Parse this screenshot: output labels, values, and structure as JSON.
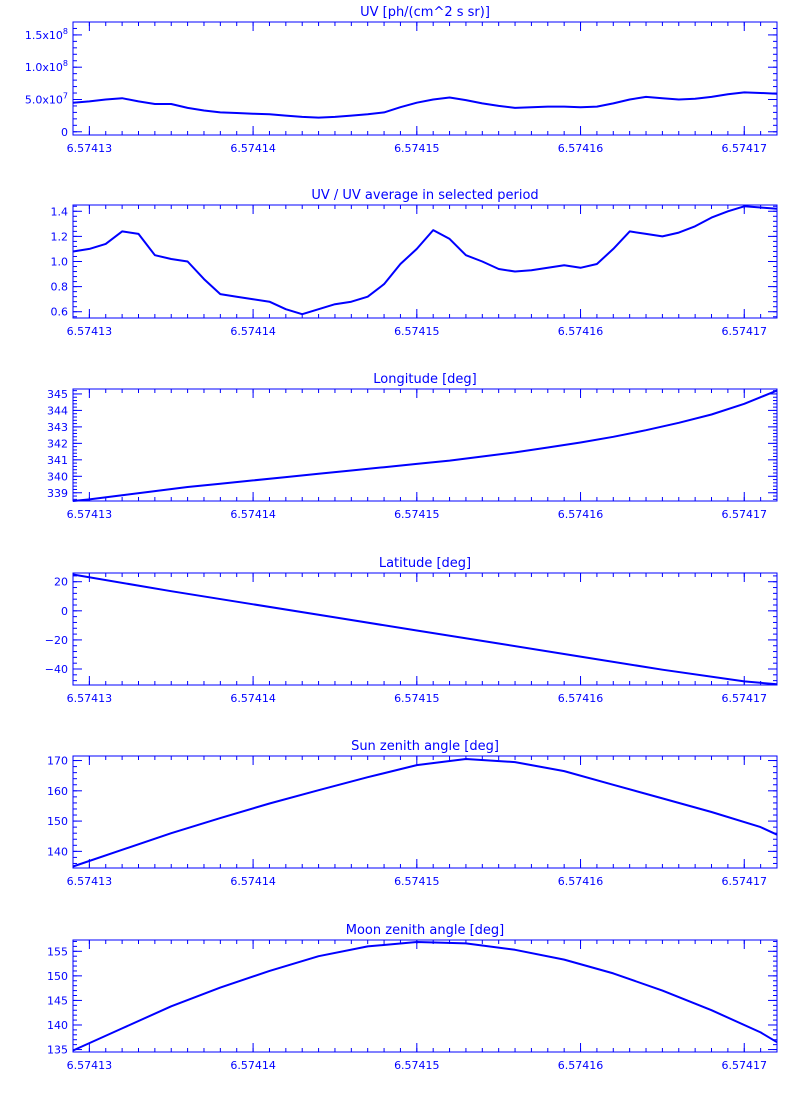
{
  "theme": {
    "ink": "#0000ff",
    "background": "#ffffff"
  },
  "chart_data": [
    {
      "type": "line",
      "title": "UV [ph/(cm^2 s sr)]",
      "xlim": [
        6.574129,
        6.574172
      ],
      "ylim": [
        -5000000,
        170000000
      ],
      "x_ticks": [
        {
          "v": 6.57413,
          "label": "6.57413"
        },
        {
          "v": 6.57414,
          "label": "6.57414"
        },
        {
          "v": 6.57415,
          "label": "6.57415"
        },
        {
          "v": 6.57416,
          "label": "6.57416"
        },
        {
          "v": 6.57417,
          "label": "6.57417"
        }
      ],
      "y_ticks": [
        {
          "v": 0,
          "label": "0",
          "mant": null
        },
        {
          "v": 50000000,
          "label": "5.0x10^7",
          "mant": "5.0x10",
          "exp": "7"
        },
        {
          "v": 100000000,
          "label": "1.0x10^8",
          "mant": "1.0x10",
          "exp": "8"
        },
        {
          "v": 150000000,
          "label": "1.5x10^8",
          "mant": "1.5x10",
          "exp": "8"
        }
      ],
      "series": [
        {
          "x": [
            6.574129,
            6.57413,
            6.574131,
            6.574132,
            6.574133,
            6.574134,
            6.574135,
            6.574136,
            6.574137,
            6.574138,
            6.574139,
            6.57414,
            6.574141,
            6.574142,
            6.574143,
            6.574144,
            6.574145,
            6.574146,
            6.574147,
            6.574148,
            6.574149,
            6.57415,
            6.574151,
            6.574152,
            6.574153,
            6.574154,
            6.574155,
            6.574156,
            6.574157,
            6.574158,
            6.574159,
            6.57416,
            6.574161,
            6.574162,
            6.574163,
            6.574164,
            6.574165,
            6.574166,
            6.574167,
            6.574168,
            6.574169,
            6.57417,
            6.574171,
            6.574172
          ],
          "y": [
            45000000,
            47000000,
            50000000,
            52000000,
            47000000,
            43000000,
            43000000,
            37000000,
            33000000,
            30000000,
            29000000,
            28000000,
            27000000,
            25000000,
            23000000,
            22000000,
            23000000,
            25000000,
            27000000,
            30000000,
            38000000,
            45000000,
            50000000,
            53000000,
            49000000,
            44000000,
            40000000,
            37000000,
            38000000,
            39000000,
            39000000,
            38000000,
            39000000,
            44000000,
            50000000,
            54000000,
            52000000,
            50000000,
            51000000,
            54000000,
            58000000,
            61000000,
            60000000,
            59000000
          ]
        }
      ]
    },
    {
      "type": "line",
      "title": "UV / UV average in selected period",
      "xlim": [
        6.574129,
        6.574172
      ],
      "ylim": [
        0.55,
        1.45
      ],
      "x_ticks": [
        {
          "v": 6.57413,
          "label": "6.57413"
        },
        {
          "v": 6.57414,
          "label": "6.57414"
        },
        {
          "v": 6.57415,
          "label": "6.57415"
        },
        {
          "v": 6.57416,
          "label": "6.57416"
        },
        {
          "v": 6.57417,
          "label": "6.57417"
        }
      ],
      "y_ticks": [
        {
          "v": 0.6,
          "label": "0.6"
        },
        {
          "v": 0.8,
          "label": "0.8"
        },
        {
          "v": 1.0,
          "label": "1.0"
        },
        {
          "v": 1.2,
          "label": "1.2"
        },
        {
          "v": 1.4,
          "label": "1.4"
        }
      ],
      "series": [
        {
          "x": [
            6.574129,
            6.57413,
            6.574131,
            6.574132,
            6.574133,
            6.574134,
            6.574135,
            6.574136,
            6.574137,
            6.574138,
            6.574139,
            6.57414,
            6.574141,
            6.574142,
            6.574143,
            6.574144,
            6.574145,
            6.574146,
            6.574147,
            6.574148,
            6.574149,
            6.57415,
            6.574151,
            6.574152,
            6.574153,
            6.574154,
            6.574155,
            6.574156,
            6.574157,
            6.574158,
            6.574159,
            6.57416,
            6.574161,
            6.574162,
            6.574163,
            6.574164,
            6.574165,
            6.574166,
            6.574167,
            6.574168,
            6.574169,
            6.57417,
            6.574171,
            6.574172
          ],
          "y": [
            1.08,
            1.1,
            1.14,
            1.24,
            1.22,
            1.05,
            1.02,
            1.0,
            0.86,
            0.74,
            0.72,
            0.7,
            0.68,
            0.62,
            0.58,
            0.62,
            0.66,
            0.68,
            0.72,
            0.82,
            0.98,
            1.1,
            1.25,
            1.18,
            1.05,
            1.0,
            0.94,
            0.92,
            0.93,
            0.95,
            0.97,
            0.95,
            0.98,
            1.1,
            1.24,
            1.22,
            1.2,
            1.23,
            1.28,
            1.35,
            1.4,
            1.44,
            1.43,
            1.42
          ]
        }
      ]
    },
    {
      "type": "line",
      "title": "Longitude [deg]",
      "xlim": [
        6.574129,
        6.574172
      ],
      "ylim": [
        338.5,
        345.3
      ],
      "x_ticks": [
        {
          "v": 6.57413,
          "label": "6.57413"
        },
        {
          "v": 6.57414,
          "label": "6.57414"
        },
        {
          "v": 6.57415,
          "label": "6.57415"
        },
        {
          "v": 6.57416,
          "label": "6.57416"
        },
        {
          "v": 6.57417,
          "label": "6.57417"
        }
      ],
      "y_ticks": [
        {
          "v": 339,
          "label": "339"
        },
        {
          "v": 340,
          "label": "340"
        },
        {
          "v": 341,
          "label": "341"
        },
        {
          "v": 342,
          "label": "342"
        },
        {
          "v": 343,
          "label": "343"
        },
        {
          "v": 344,
          "label": "344"
        },
        {
          "v": 345,
          "label": "345"
        }
      ],
      "series": [
        {
          "x": [
            6.574129,
            6.57413,
            6.574132,
            6.574134,
            6.574136,
            6.574138,
            6.57414,
            6.574142,
            6.574144,
            6.574146,
            6.574148,
            6.57415,
            6.574152,
            6.574154,
            6.574156,
            6.574158,
            6.57416,
            6.574162,
            6.574164,
            6.574166,
            6.574168,
            6.57417,
            6.574171,
            6.574172
          ],
          "y": [
            338.5,
            338.6,
            338.85,
            339.1,
            339.35,
            339.55,
            339.75,
            339.95,
            340.15,
            340.35,
            340.55,
            340.75,
            340.95,
            341.2,
            341.45,
            341.75,
            342.05,
            342.4,
            342.8,
            343.25,
            343.75,
            344.4,
            344.8,
            345.2
          ]
        }
      ]
    },
    {
      "type": "line",
      "title": "Latitude [deg]",
      "xlim": [
        6.574129,
        6.574172
      ],
      "ylim": [
        -51,
        26
      ],
      "x_ticks": [
        {
          "v": 6.57413,
          "label": "6.57413"
        },
        {
          "v": 6.57414,
          "label": "6.57414"
        },
        {
          "v": 6.57415,
          "label": "6.57415"
        },
        {
          "v": 6.57416,
          "label": "6.57416"
        },
        {
          "v": 6.57417,
          "label": "6.57417"
        }
      ],
      "y_ticks": [
        {
          "v": -40,
          "label": "−40"
        },
        {
          "v": -20,
          "label": "−20"
        },
        {
          "v": 0,
          "label": "0"
        },
        {
          "v": 20,
          "label": "20"
        }
      ],
      "series": [
        {
          "x": [
            6.574129,
            6.574135,
            6.57414,
            6.574145,
            6.57415,
            6.574155,
            6.57416,
            6.574165,
            6.57417,
            6.574172
          ],
          "y": [
            25,
            13.5,
            4.5,
            -4.5,
            -13.5,
            -22.5,
            -31.5,
            -40.5,
            -48.5,
            -50.5
          ]
        }
      ]
    },
    {
      "type": "line",
      "title": "Sun zenith angle [deg]",
      "xlim": [
        6.574129,
        6.574172
      ],
      "ylim": [
        134.5,
        171.5
      ],
      "x_ticks": [
        {
          "v": 6.57413,
          "label": "6.57413"
        },
        {
          "v": 6.57414,
          "label": "6.57414"
        },
        {
          "v": 6.57415,
          "label": "6.57415"
        },
        {
          "v": 6.57416,
          "label": "6.57416"
        },
        {
          "v": 6.57417,
          "label": "6.57417"
        }
      ],
      "y_ticks": [
        {
          "v": 140,
          "label": "140"
        },
        {
          "v": 150,
          "label": "150"
        },
        {
          "v": 160,
          "label": "160"
        },
        {
          "v": 170,
          "label": "170"
        }
      ],
      "series": [
        {
          "x": [
            6.574129,
            6.574132,
            6.574135,
            6.574138,
            6.574141,
            6.574144,
            6.574147,
            6.57415,
            6.574153,
            6.574156,
            6.574159,
            6.574162,
            6.574165,
            6.574168,
            6.574171,
            6.574172
          ],
          "y": [
            135,
            140.5,
            146,
            151,
            155.8,
            160.2,
            164.5,
            168.5,
            170.5,
            169.5,
            166.5,
            162,
            157.5,
            153,
            148,
            145.5
          ]
        }
      ]
    },
    {
      "type": "line",
      "title": "Moon zenith angle [deg]",
      "xlim": [
        6.574129,
        6.574172
      ],
      "ylim": [
        134.5,
        157.3
      ],
      "x_ticks": [
        {
          "v": 6.57413,
          "label": "6.57413"
        },
        {
          "v": 6.57414,
          "label": "6.57414"
        },
        {
          "v": 6.57415,
          "label": "6.57415"
        },
        {
          "v": 6.57416,
          "label": "6.57416"
        },
        {
          "v": 6.57417,
          "label": "6.57417"
        }
      ],
      "y_ticks": [
        {
          "v": 135,
          "label": "135"
        },
        {
          "v": 140,
          "label": "140"
        },
        {
          "v": 145,
          "label": "145"
        },
        {
          "v": 150,
          "label": "150"
        },
        {
          "v": 155,
          "label": "155"
        }
      ],
      "series": [
        {
          "x": [
            6.574129,
            6.574132,
            6.574135,
            6.574138,
            6.574141,
            6.574144,
            6.574147,
            6.57415,
            6.574153,
            6.574156,
            6.574159,
            6.574162,
            6.574165,
            6.574168,
            6.574171,
            6.574172
          ],
          "y": [
            134.8,
            139.3,
            143.8,
            147.6,
            151.0,
            154.0,
            156.0,
            156.9,
            156.6,
            155.3,
            153.3,
            150.5,
            147.0,
            143.0,
            138.5,
            136.5
          ]
        }
      ]
    }
  ]
}
